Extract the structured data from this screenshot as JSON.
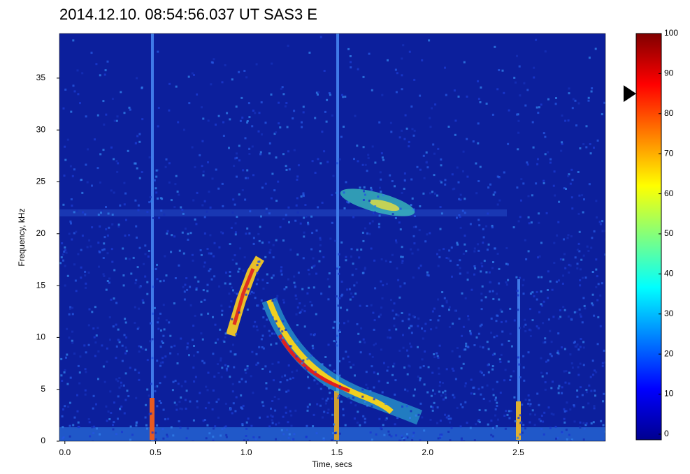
{
  "chart_data": {
    "type": "spectrogram",
    "title": "2014.12.10. 08:54:56.037  UT SAS3 E",
    "xlabel": "Time, secs",
    "ylabel": "Frequency, kHz",
    "xlim": [
      -0.03,
      2.98
    ],
    "xticks": [
      {
        "value": 0,
        "label": "0.0"
      },
      0.5,
      {
        "value": 1,
        "label": "1.0"
      },
      1.5,
      {
        "value": 2,
        "label": "2.0"
      },
      2.5
    ],
    "ylim": [
      0,
      39.3
    ],
    "yticks": [
      0,
      5,
      10,
      15,
      20,
      25,
      30,
      35
    ],
    "colormap": "jet",
    "clim": [
      -1.4,
      100
    ],
    "cticks": [
      0,
      10,
      20,
      30,
      40,
      50,
      60,
      70,
      80,
      90,
      100
    ],
    "marker": 85
  }
}
